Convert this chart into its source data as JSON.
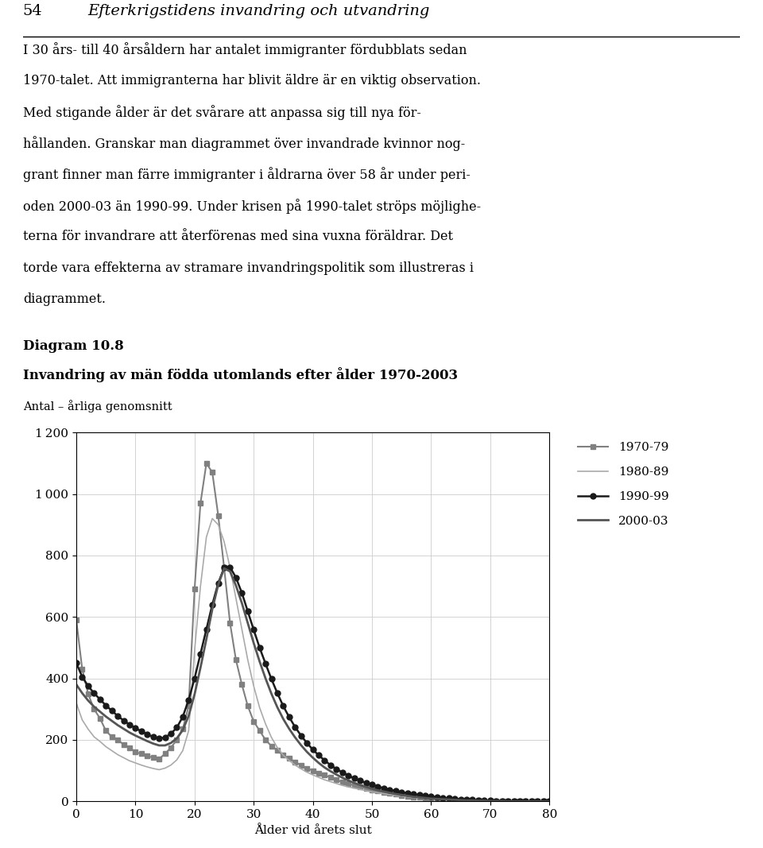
{
  "title_diagram": "Diagram 10.8",
  "title_main": "Invandring av män födda utomlands efter ålder 1970-2003",
  "subtitle": "Antal – årliga genomsnitt",
  "xlabel": "Ålder vid årets slut",
  "xlim": [
    0,
    80
  ],
  "ylim": [
    0,
    1200
  ],
  "yticks": [
    0,
    200,
    400,
    600,
    800,
    1000,
    1200
  ],
  "xticks": [
    0,
    10,
    20,
    30,
    40,
    50,
    60,
    70,
    80
  ],
  "header_number": "54",
  "header_title": "Efterkrigstidens invandring och utvandring",
  "text_lines": [
    "I 30 års- till 40 årsåldern har antalet immigranter fördubblats sedan",
    "1970-talet. Att immigranterna har blivit äldre är en viktig observation.",
    "Med stigande ålder är det svårare att anpassa sig till nya för-",
    "hållanden. Granskar man diagrammet över invandrade kvinnor nog-",
    "grant finner man färre immigranter i åldrarna över 58 år under peri-",
    "oden 2000-03 än 1990-99. Under krisen på 1990-talet ströps möjlighe-",
    "terna för invandrare att återförenas med sina vuxna föräldrar. Det",
    "torde vara effekterna av stramare invandringspolitik som illustreras i",
    "diagrammet."
  ],
  "series": {
    "1970-79": {
      "color": "#808080",
      "linewidth": 1.5,
      "marker": "s",
      "markersize": 5,
      "ages": [
        0,
        1,
        2,
        3,
        4,
        5,
        6,
        7,
        8,
        9,
        10,
        11,
        12,
        13,
        14,
        15,
        16,
        17,
        18,
        19,
        20,
        21,
        22,
        23,
        24,
        25,
        26,
        27,
        28,
        29,
        30,
        31,
        32,
        33,
        34,
        35,
        36,
        37,
        38,
        39,
        40,
        41,
        42,
        43,
        44,
        45,
        46,
        47,
        48,
        49,
        50,
        51,
        52,
        53,
        54,
        55,
        56,
        57,
        58,
        59,
        60,
        61,
        62,
        63,
        64,
        65,
        66,
        67,
        68,
        69,
        70,
        71,
        72,
        73,
        74,
        75,
        76,
        77,
        78,
        79,
        80
      ],
      "values": [
        590,
        430,
        350,
        300,
        270,
        230,
        210,
        200,
        185,
        175,
        160,
        155,
        148,
        142,
        138,
        155,
        175,
        200,
        235,
        310,
        690,
        970,
        1100,
        1070,
        930,
        760,
        580,
        460,
        380,
        310,
        260,
        230,
        200,
        180,
        165,
        150,
        140,
        128,
        118,
        108,
        100,
        92,
        85,
        78,
        70,
        63,
        57,
        52,
        47,
        42,
        38,
        34,
        30,
        26,
        23,
        20,
        17,
        15,
        13,
        11,
        10,
        8,
        7,
        6,
        5,
        4,
        4,
        3,
        3,
        2,
        2,
        2,
        1,
        1,
        1,
        1,
        1,
        0,
        0,
        0,
        0
      ]
    },
    "1980-89": {
      "color": "#aaaaaa",
      "linewidth": 1.2,
      "marker": null,
      "markersize": 0,
      "ages": [
        0,
        1,
        2,
        3,
        4,
        5,
        6,
        7,
        8,
        9,
        10,
        11,
        12,
        13,
        14,
        15,
        16,
        17,
        18,
        19,
        20,
        21,
        22,
        23,
        24,
        25,
        26,
        27,
        28,
        29,
        30,
        31,
        32,
        33,
        34,
        35,
        36,
        37,
        38,
        39,
        40,
        41,
        42,
        43,
        44,
        45,
        46,
        47,
        48,
        49,
        50,
        51,
        52,
        53,
        54,
        55,
        56,
        57,
        58,
        59,
        60,
        61,
        62,
        63,
        64,
        65,
        66,
        67,
        68,
        69,
        70,
        71,
        72,
        73,
        74,
        75,
        76,
        77,
        78,
        79,
        80
      ],
      "values": [
        320,
        265,
        235,
        210,
        195,
        178,
        165,
        152,
        142,
        132,
        125,
        118,
        112,
        107,
        103,
        108,
        118,
        135,
        165,
        230,
        490,
        700,
        860,
        920,
        900,
        845,
        760,
        660,
        560,
        460,
        375,
        305,
        252,
        208,
        175,
        150,
        133,
        118,
        106,
        95,
        86,
        78,
        70,
        64,
        58,
        52,
        47,
        43,
        39,
        35,
        31,
        28,
        25,
        22,
        19,
        17,
        15,
        13,
        11,
        10,
        8,
        7,
        6,
        5,
        4,
        4,
        3,
        3,
        2,
        2,
        1,
        1,
        1,
        1,
        1,
        0,
        0,
        0,
        0,
        0,
        0
      ]
    },
    "1990-99": {
      "color": "#1a1a1a",
      "linewidth": 1.8,
      "marker": "o",
      "markersize": 5,
      "ages": [
        0,
        1,
        2,
        3,
        4,
        5,
        6,
        7,
        8,
        9,
        10,
        11,
        12,
        13,
        14,
        15,
        16,
        17,
        18,
        19,
        20,
        21,
        22,
        23,
        24,
        25,
        26,
        27,
        28,
        29,
        30,
        31,
        32,
        33,
        34,
        35,
        36,
        37,
        38,
        39,
        40,
        41,
        42,
        43,
        44,
        45,
        46,
        47,
        48,
        49,
        50,
        51,
        52,
        53,
        54,
        55,
        56,
        57,
        58,
        59,
        60,
        61,
        62,
        63,
        64,
        65,
        66,
        67,
        68,
        69,
        70,
        71,
        72,
        73,
        74,
        75,
        76,
        77,
        78,
        79,
        80
      ],
      "values": [
        450,
        405,
        375,
        352,
        332,
        312,
        295,
        278,
        263,
        250,
        238,
        228,
        218,
        210,
        204,
        208,
        220,
        240,
        275,
        330,
        400,
        480,
        560,
        640,
        710,
        760,
        762,
        728,
        678,
        618,
        558,
        500,
        448,
        398,
        352,
        310,
        274,
        242,
        214,
        190,
        168,
        150,
        133,
        118,
        105,
        94,
        84,
        75,
        67,
        60,
        54,
        48,
        43,
        38,
        34,
        30,
        27,
        24,
        21,
        18,
        16,
        14,
        12,
        10,
        9,
        7,
        6,
        5,
        4,
        3,
        3,
        2,
        2,
        1,
        1,
        1,
        1,
        0,
        0,
        0,
        0
      ]
    },
    "2000-03": {
      "color": "#555555",
      "linewidth": 2.0,
      "marker": null,
      "markersize": 0,
      "ages": [
        0,
        1,
        2,
        3,
        4,
        5,
        6,
        7,
        8,
        9,
        10,
        11,
        12,
        13,
        14,
        15,
        16,
        17,
        18,
        19,
        20,
        21,
        22,
        23,
        24,
        25,
        26,
        27,
        28,
        29,
        30,
        31,
        32,
        33,
        34,
        35,
        36,
        37,
        38,
        39,
        40,
        41,
        42,
        43,
        44,
        45,
        46,
        47,
        48,
        49,
        50,
        51,
        52,
        53,
        54,
        55,
        56,
        57,
        58,
        59,
        60,
        61,
        62,
        63,
        64,
        65,
        66,
        67,
        68,
        69,
        70,
        71,
        72,
        73,
        74,
        75,
        76,
        77,
        78,
        79,
        80
      ],
      "values": [
        380,
        352,
        328,
        308,
        292,
        276,
        262,
        248,
        236,
        224,
        214,
        205,
        196,
        188,
        182,
        182,
        190,
        205,
        232,
        278,
        348,
        435,
        528,
        625,
        705,
        758,
        748,
        702,
        645,
        580,
        515,
        455,
        400,
        350,
        306,
        268,
        236,
        208,
        183,
        161,
        142,
        125,
        110,
        98,
        87,
        77,
        68,
        60,
        53,
        47,
        41,
        36,
        32,
        28,
        24,
        21,
        18,
        15,
        13,
        11,
        9,
        8,
        7,
        6,
        5,
        4,
        3,
        3,
        2,
        2,
        1,
        1,
        1,
        0,
        0,
        0,
        0,
        0,
        0,
        0,
        0
      ]
    }
  },
  "legend_order": [
    "1970-79",
    "1980-89",
    "1990-99",
    "2000-03"
  ],
  "background_color": "#ffffff",
  "grid_color": "#cccccc"
}
